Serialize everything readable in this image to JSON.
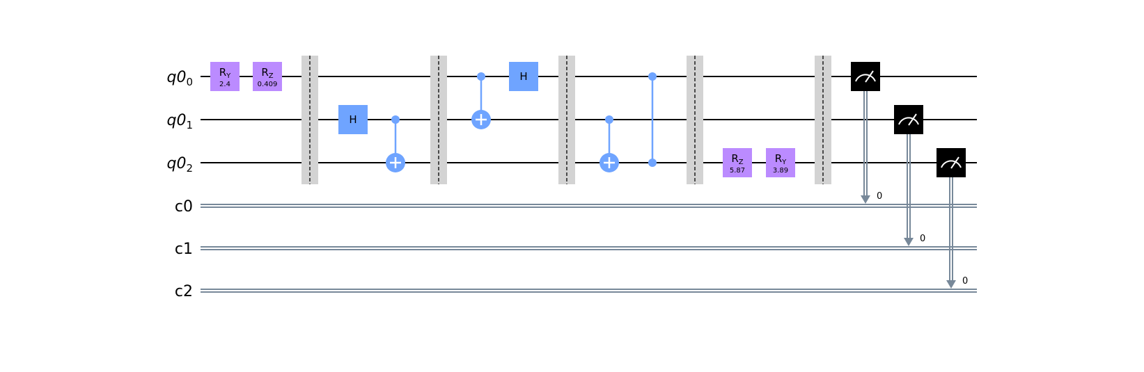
{
  "colors": {
    "rotation_gate": "#bb8bff",
    "h_gate": "#6fa4ff",
    "control": "#6fa4ff",
    "barrier": "#d3d3d3",
    "measure": "#000000",
    "classical_wire": "#778899",
    "quantum_wire": "#000000"
  },
  "qubits": [
    {
      "base": "q0",
      "index": "0"
    },
    {
      "base": "q0",
      "index": "1"
    },
    {
      "base": "q0",
      "index": "2"
    }
  ],
  "clbits": [
    {
      "label": "c0"
    },
    {
      "label": "c1"
    },
    {
      "label": "c2"
    }
  ],
  "gates": [
    {
      "kind": "rot",
      "name": "R",
      "sub": "Y",
      "param": "2.4",
      "qubit": 0,
      "col": 0
    },
    {
      "kind": "rot",
      "name": "R",
      "sub": "Z",
      "param": "0.409",
      "qubit": 0,
      "col": 1
    },
    {
      "kind": "barrier",
      "col": 2
    },
    {
      "kind": "h",
      "name": "H",
      "qubit": 1,
      "col": 3
    },
    {
      "kind": "cx",
      "control": 1,
      "target": 2,
      "col": 4
    },
    {
      "kind": "barrier",
      "col": 5
    },
    {
      "kind": "cx",
      "control": 0,
      "target": 1,
      "col": 6
    },
    {
      "kind": "h",
      "name": "H",
      "qubit": 0,
      "col": 7
    },
    {
      "kind": "barrier",
      "col": 8
    },
    {
      "kind": "cx",
      "control": 1,
      "target": 2,
      "col": 9
    },
    {
      "kind": "cz",
      "control": 0,
      "target": 2,
      "col": 10
    },
    {
      "kind": "barrier",
      "col": 11
    },
    {
      "kind": "rot",
      "name": "R",
      "sub": "Z",
      "param": "5.87",
      "qubit": 2,
      "col": 12
    },
    {
      "kind": "rot",
      "name": "R",
      "sub": "Y",
      "param": "3.89",
      "qubit": 2,
      "col": 13
    },
    {
      "kind": "barrier",
      "col": 14
    },
    {
      "kind": "measure",
      "qubit": 0,
      "clbit": 0,
      "bit_label": "0",
      "col": 15
    },
    {
      "kind": "measure",
      "qubit": 1,
      "clbit": 1,
      "bit_label": "0",
      "col": 16
    },
    {
      "kind": "measure",
      "qubit": 2,
      "clbit": 2,
      "bit_label": "0",
      "col": 17
    }
  ]
}
